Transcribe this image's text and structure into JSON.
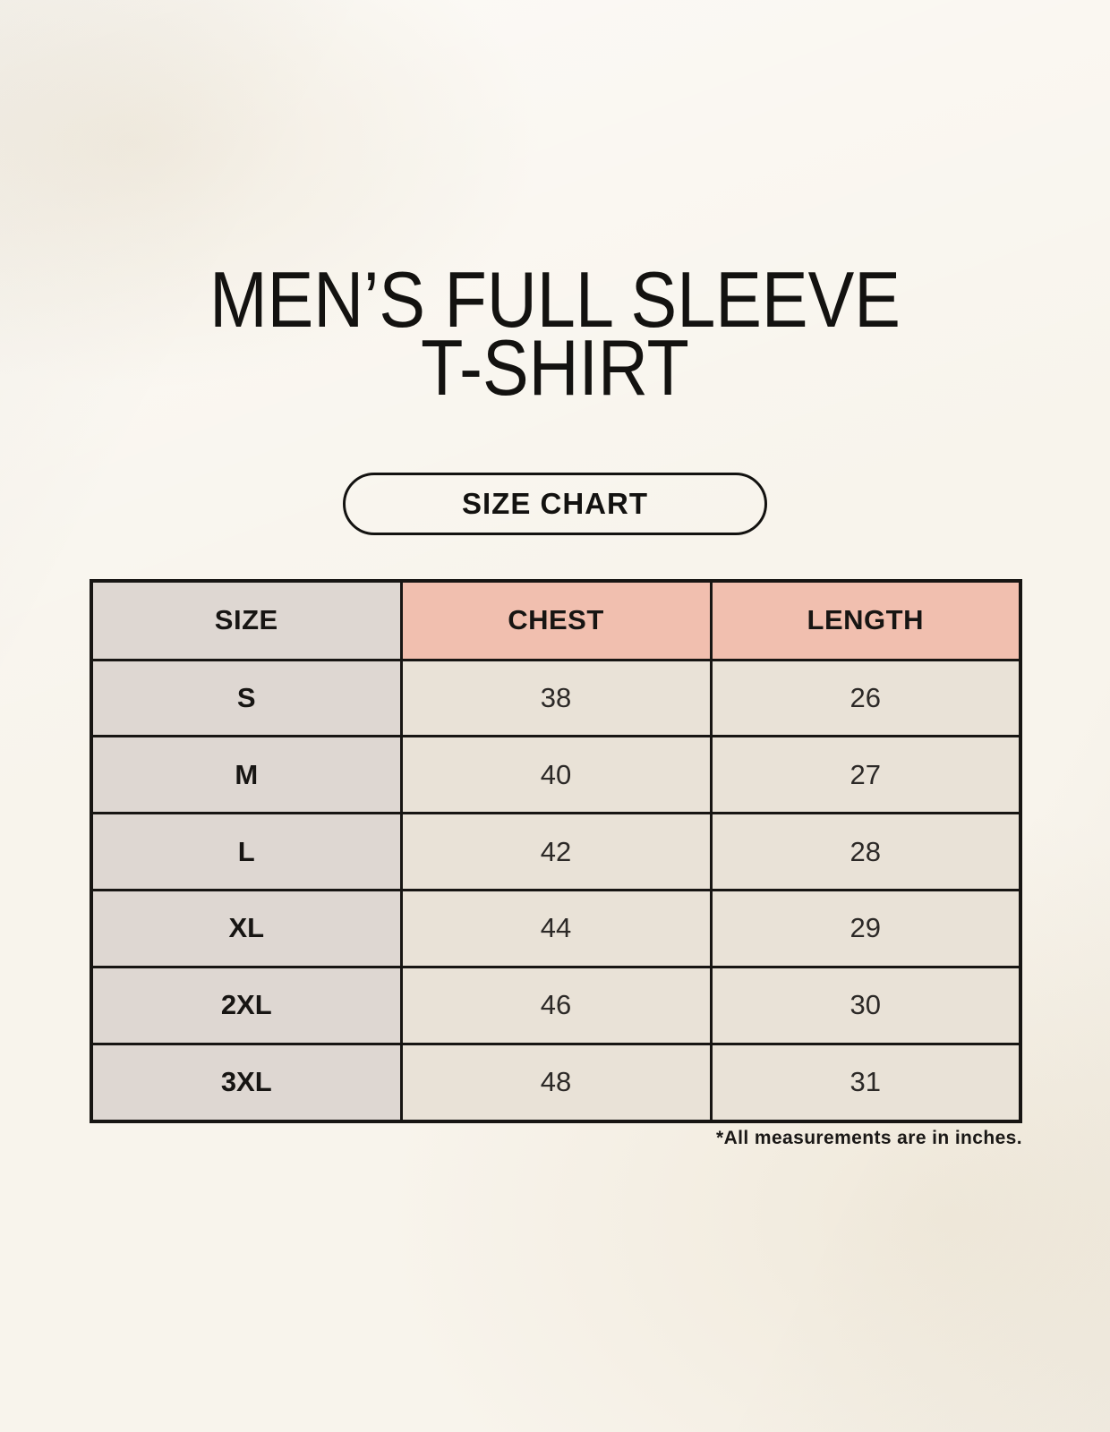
{
  "header": {
    "title_line1": "MEN’S FULL SLEEVE",
    "title_line2": "T-SHIRT",
    "badge_label": "SIZE CHART"
  },
  "table": {
    "headers": [
      "SIZE",
      "CHEST",
      "LENGTH"
    ],
    "rows": [
      {
        "size": "S",
        "chest": "38",
        "length": "26"
      },
      {
        "size": "M",
        "chest": "40",
        "length": "27"
      },
      {
        "size": "L",
        "chest": "42",
        "length": "28"
      },
      {
        "size": "XL",
        "chest": "44",
        "length": "29"
      },
      {
        "size": "2XL",
        "chest": "46",
        "length": "30"
      },
      {
        "size": "3XL",
        "chest": "48",
        "length": "31"
      }
    ]
  },
  "footer": {
    "note": "*All measurements are in inches."
  },
  "colors": {
    "page_background": "#f8f4ec",
    "size_column_background": "#ded7d2",
    "accent_header_background": "#f1bfaf",
    "data_cell_background": "#e9e2d7",
    "border": "#171513",
    "text": "#131210"
  }
}
